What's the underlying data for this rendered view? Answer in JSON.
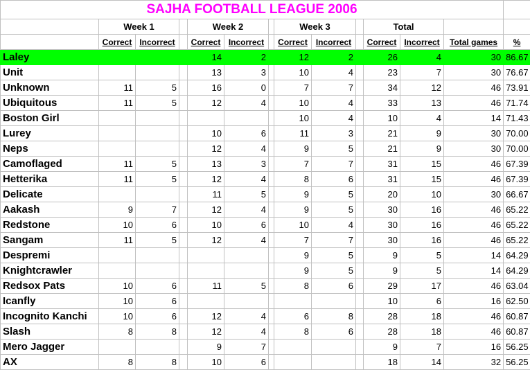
{
  "title": "SAJHA FOOTBALL LEAGUE 2006",
  "groups": {
    "week1": "Week 1",
    "week2": "Week 2",
    "week3": "Week 3",
    "total": "Total"
  },
  "subheaders": {
    "correct": "Correct",
    "incorrect": "Incorrect",
    "total_games": "Total games",
    "pct": "%"
  },
  "highlight_color": "#00ff00",
  "rows": [
    [
      "Laley",
      "",
      "",
      "14",
      "2",
      "12",
      "2",
      "26",
      "4",
      "30",
      "86.67"
    ],
    [
      "Unit",
      "",
      "",
      "13",
      "3",
      "10",
      "4",
      "23",
      "7",
      "30",
      "76.67"
    ],
    [
      "Unknown",
      "11",
      "5",
      "16",
      "0",
      "7",
      "7",
      "34",
      "12",
      "46",
      "73.91"
    ],
    [
      "Ubiquitous",
      "11",
      "5",
      "12",
      "4",
      "10",
      "4",
      "33",
      "13",
      "46",
      "71.74"
    ],
    [
      "Boston Girl",
      "",
      "",
      "",
      "",
      "10",
      "4",
      "10",
      "4",
      "14",
      "71.43"
    ],
    [
      "Lurey",
      "",
      "",
      "10",
      "6",
      "11",
      "3",
      "21",
      "9",
      "30",
      "70.00"
    ],
    [
      "Neps",
      "",
      "",
      "12",
      "4",
      "9",
      "5",
      "21",
      "9",
      "30",
      "70.00"
    ],
    [
      "Camoflaged",
      "11",
      "5",
      "13",
      "3",
      "7",
      "7",
      "31",
      "15",
      "46",
      "67.39"
    ],
    [
      "Hetterika",
      "11",
      "5",
      "12",
      "4",
      "8",
      "6",
      "31",
      "15",
      "46",
      "67.39"
    ],
    [
      "Delicate",
      "",
      "",
      "11",
      "5",
      "9",
      "5",
      "20",
      "10",
      "30",
      "66.67"
    ],
    [
      "Aakash",
      "9",
      "7",
      "12",
      "4",
      "9",
      "5",
      "30",
      "16",
      "46",
      "65.22"
    ],
    [
      "Redstone",
      "10",
      "6",
      "10",
      "6",
      "10",
      "4",
      "30",
      "16",
      "46",
      "65.22"
    ],
    [
      "Sangam",
      "11",
      "5",
      "12",
      "4",
      "7",
      "7",
      "30",
      "16",
      "46",
      "65.22"
    ],
    [
      "Despremi",
      "",
      "",
      "",
      "",
      "9",
      "5",
      "9",
      "5",
      "14",
      "64.29"
    ],
    [
      "Knightcrawler",
      "",
      "",
      "",
      "",
      "9",
      "5",
      "9",
      "5",
      "14",
      "64.29"
    ],
    [
      "Redsox Pats",
      "10",
      "6",
      "11",
      "5",
      "8",
      "6",
      "29",
      "17",
      "46",
      "63.04"
    ],
    [
      "Icanfly",
      "10",
      "6",
      "",
      "",
      "",
      "",
      "10",
      "6",
      "16",
      "62.50"
    ],
    [
      "Incognito Kanchi",
      "10",
      "6",
      "12",
      "4",
      "6",
      "8",
      "28",
      "18",
      "46",
      "60.87"
    ],
    [
      "Slash",
      "8",
      "8",
      "12",
      "4",
      "8",
      "6",
      "28",
      "18",
      "46",
      "60.87"
    ],
    [
      "Mero Jagger",
      "",
      "",
      "9",
      "7",
      "",
      "",
      "9",
      "7",
      "16",
      "56.25"
    ],
    [
      "AX",
      "8",
      "8",
      "10",
      "6",
      "",
      "",
      "18",
      "14",
      "32",
      "56.25"
    ]
  ]
}
